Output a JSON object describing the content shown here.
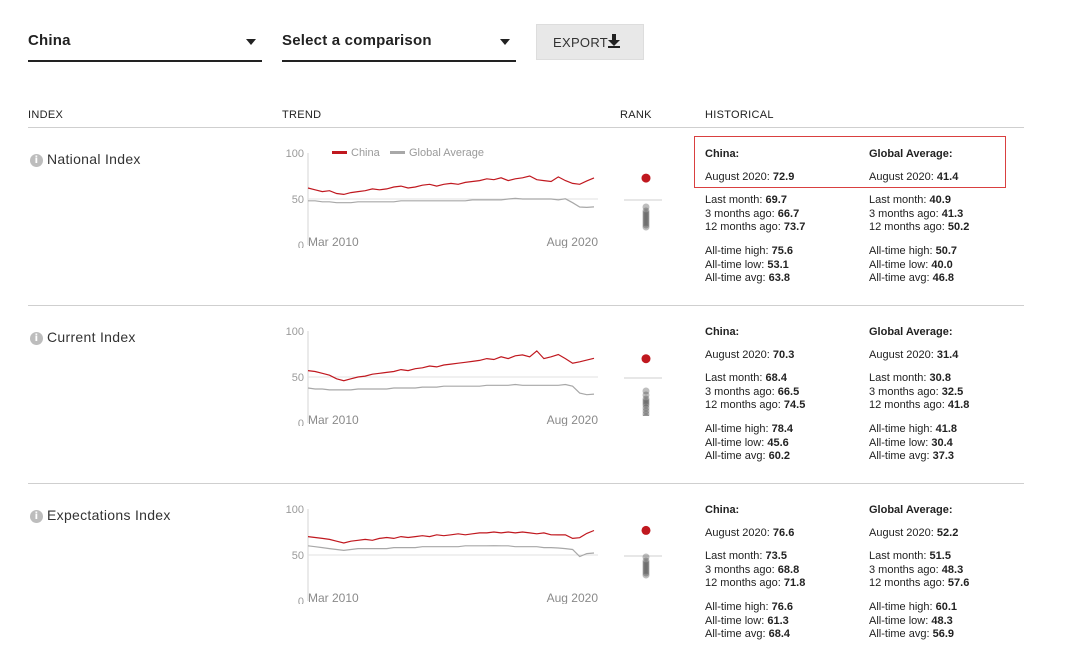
{
  "toolbar": {
    "country_select": "China",
    "comparison_select": "Select a comparison",
    "export_label": "EXPORT"
  },
  "table_headers": {
    "index": "INDEX",
    "trend": "TREND",
    "rank": "RANK",
    "historical": "HISTORICAL"
  },
  "legend": {
    "country": "China",
    "average": "Global Average"
  },
  "axis": {
    "y_top": "100",
    "y_mid": "50",
    "y_bottom": "0",
    "x_start": "Mar 2010",
    "x_end": "Aug 2020"
  },
  "colors": {
    "country": "#c0181f",
    "average": "#a8a8a8",
    "highlight_border": "#d94040"
  },
  "icons": {
    "info": "info-icon",
    "export": "download-icon",
    "dropdown": "caret-down-icon"
  },
  "sections": [
    {
      "name": "National Index",
      "country": {
        "title": "China:",
        "current_label": "August 2020:",
        "current_value": "72.9",
        "last_month_label": "Last month:",
        "last_month": "69.7",
        "three_months_label": "3 months ago:",
        "three_months": "66.7",
        "twelve_months_label": "12 months ago:",
        "twelve_months": "73.7",
        "high_label": "All-time high:",
        "high": "75.6",
        "low_label": "All-time low:",
        "low": "53.1",
        "avg_label": "All-time avg:",
        "avg": "63.8"
      },
      "average": {
        "title": "Global Average:",
        "current_label": "August 2020:",
        "current_value": "41.4",
        "last_month_label": "Last month:",
        "last_month": "40.9",
        "three_months_label": "3 months ago:",
        "three_months": "41.3",
        "twelve_months_label": "12 months ago:",
        "twelve_months": "50.2",
        "high_label": "All-time high:",
        "high": "50.7",
        "low_label": "All-time low:",
        "low": "40.0",
        "avg_label": "All-time avg:",
        "avg": "46.8"
      },
      "rank": {
        "country_value": 72.9,
        "others": [
          56,
          52,
          50,
          48,
          46,
          44,
          42,
          40,
          38,
          36
        ]
      }
    },
    {
      "name": "Current Index",
      "country": {
        "title": "China:",
        "current_label": "August 2020:",
        "current_value": "70.3",
        "last_month_label": "Last month:",
        "last_month": "68.4",
        "three_months_label": "3 months ago:",
        "three_months": "66.5",
        "twelve_months_label": "12 months ago:",
        "twelve_months": "74.5",
        "high_label": "All-time high:",
        "high": "78.4",
        "low_label": "All-time low:",
        "low": "45.6",
        "avg_label": "All-time avg:",
        "avg": "60.2"
      },
      "average": {
        "title": "Global Average:",
        "current_label": "August 2020:",
        "current_value": "31.4",
        "last_month_label": "Last month:",
        "last_month": "30.8",
        "three_months_label": "3 months ago:",
        "three_months": "32.5",
        "twelve_months_label": "12 months ago:",
        "twelve_months": "41.8",
        "high_label": "All-time high:",
        "high": "41.8",
        "low_label": "All-time low:",
        "low": "30.4",
        "avg_label": "All-time avg:",
        "avg": "37.3"
      },
      "rank": {
        "country_value": 70.3,
        "others": [
          50,
          46,
          42,
          40,
          38,
          36,
          33,
          30,
          27,
          24
        ]
      }
    },
    {
      "name": "Expectations Index",
      "country": {
        "title": "China:",
        "current_label": "August 2020:",
        "current_value": "76.6",
        "last_month_label": "Last month:",
        "last_month": "73.5",
        "three_months_label": "3 months ago:",
        "three_months": "68.8",
        "twelve_months_label": "12 months ago:",
        "twelve_months": "71.8",
        "high_label": "All-time high:",
        "high": "76.6",
        "low_label": "All-time low:",
        "low": "61.3",
        "avg_label": "All-time avg:",
        "avg": "68.4"
      },
      "average": {
        "title": "Global Average:",
        "current_label": "August 2020:",
        "current_value": "52.2",
        "last_month_label": "Last month:",
        "last_month": "51.5",
        "three_months_label": "3 months ago:",
        "three_months": "48.3",
        "twelve_months_label": "12 months ago:",
        "twelve_months": "57.6",
        "high_label": "All-time high:",
        "high": "60.1",
        "low_label": "All-time low:",
        "low": "48.3",
        "avg_label": "All-time avg:",
        "avg": "56.9"
      },
      "rank": {
        "country_value": 76.6,
        "others": [
          62,
          58,
          56,
          54,
          52,
          50,
          48,
          46,
          44
        ]
      }
    }
  ],
  "chart_data": [
    {
      "type": "line",
      "title": "",
      "ylim": [
        0,
        100
      ],
      "x_range": [
        "Mar 2010",
        "Aug 2020"
      ],
      "series": [
        {
          "name": "China",
          "values": [
            62,
            60,
            58,
            59,
            56,
            55,
            57,
            58,
            59,
            61,
            60,
            61,
            63,
            64,
            62,
            63,
            65,
            66,
            64,
            66,
            67,
            66,
            68,
            69,
            70,
            72,
            71,
            73,
            70,
            72,
            73,
            75,
            71,
            70,
            69,
            74,
            70,
            67,
            66,
            69.7,
            72.9
          ]
        },
        {
          "name": "Global Average",
          "values": [
            48,
            48,
            47,
            47,
            46,
            46,
            46,
            47,
            47,
            47,
            47,
            47,
            47,
            48,
            48,
            48,
            48,
            48,
            48,
            48,
            48,
            48,
            48,
            49,
            49,
            49,
            49,
            49,
            50,
            50.7,
            50,
            50,
            50,
            50,
            50,
            49,
            50.2,
            46,
            41.3,
            40.9,
            41.4
          ]
        }
      ]
    },
    {
      "type": "line",
      "title": "",
      "ylim": [
        0,
        100
      ],
      "x_range": [
        "Mar 2010",
        "Aug 2020"
      ],
      "series": [
        {
          "name": "China",
          "values": [
            57,
            56,
            54,
            52,
            48,
            46,
            48,
            50,
            51,
            53,
            54,
            55,
            56,
            58,
            57,
            59,
            60,
            62,
            61,
            63,
            64,
            65,
            66,
            67,
            68,
            70,
            69,
            72,
            70,
            73,
            74,
            72,
            78.4,
            70,
            72,
            74.5,
            70,
            65,
            66.5,
            68.4,
            70.3
          ]
        },
        {
          "name": "Global Average",
          "values": [
            38,
            37,
            37,
            36,
            36,
            36,
            36,
            37,
            37,
            37,
            37,
            37,
            38,
            38,
            38,
            38,
            39,
            39,
            39,
            40,
            40,
            40,
            40,
            40,
            40,
            41,
            41,
            41,
            41,
            41.8,
            41,
            41,
            41,
            41,
            41,
            41,
            41.8,
            40,
            32.5,
            30.8,
            31.4
          ]
        }
      ]
    },
    {
      "type": "line",
      "title": "",
      "ylim": [
        0,
        100
      ],
      "x_range": [
        "Mar 2010",
        "Aug 2020"
      ],
      "series": [
        {
          "name": "China",
          "values": [
            70,
            69,
            68,
            67,
            65,
            63,
            65,
            66,
            67,
            66,
            68,
            69,
            68,
            70,
            69,
            70,
            71,
            70,
            72,
            71,
            72,
            73,
            72,
            73,
            74,
            74,
            75,
            74,
            75,
            74,
            75,
            74,
            73,
            74,
            72,
            71.8,
            72,
            68,
            68.8,
            73.5,
            76.6
          ]
        },
        {
          "name": "Global Average",
          "values": [
            60,
            59,
            58,
            57,
            56,
            55,
            56,
            57,
            57,
            57,
            57,
            57,
            58,
            58,
            58,
            58,
            59,
            59,
            59,
            59,
            59,
            59,
            60,
            60,
            60,
            60,
            60.1,
            60,
            60,
            59,
            59,
            59,
            59,
            58,
            58,
            57.6,
            57,
            56,
            48.3,
            51.5,
            52.2
          ]
        }
      ]
    }
  ]
}
